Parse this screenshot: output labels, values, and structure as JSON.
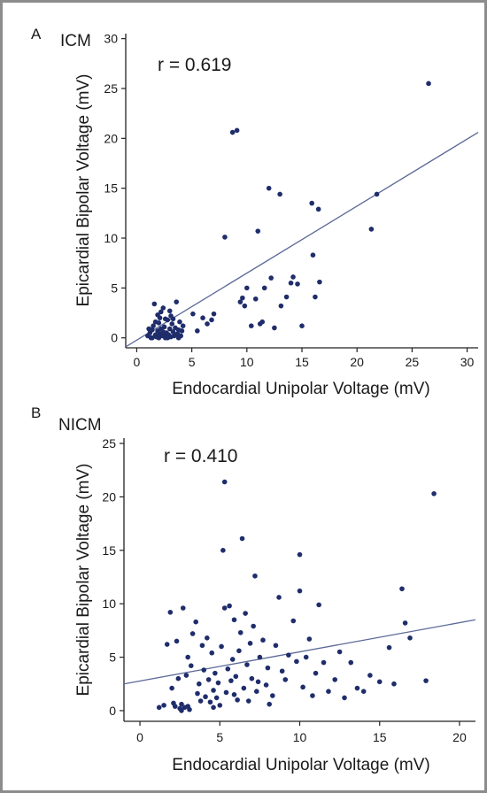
{
  "chart_data": [
    {
      "type": "scatter",
      "panel_label": "A",
      "group_label": "ICM",
      "annotation": "r = 0.619",
      "xlabel": "Endocardial Unipolar Voltage (mV)",
      "ylabel": "Epicardial Bipolar Voltage (mV)",
      "xlim": [
        -1,
        31
      ],
      "ylim": [
        -1,
        30.5
      ],
      "xticks": [
        0,
        5,
        10,
        15,
        20,
        25,
        30
      ],
      "yticks": [
        0,
        5,
        10,
        15,
        20,
        25,
        30
      ],
      "grid": false,
      "regression": {
        "x": [
          -1,
          31
        ],
        "y": [
          -0.9,
          20.6
        ]
      },
      "point_color": "#1f2d6b",
      "line_color": "#5b6896",
      "points": [
        [
          1.0,
          0.2
        ],
        [
          1.2,
          0.5
        ],
        [
          1.3,
          0.0
        ],
        [
          1.4,
          0.8
        ],
        [
          1.5,
          1.2
        ],
        [
          1.6,
          3.4
        ],
        [
          1.7,
          0.3
        ],
        [
          1.8,
          0.1
        ],
        [
          1.9,
          0.7
        ],
        [
          2.0,
          1.5
        ],
        [
          2.1,
          0.4
        ],
        [
          2.1,
          2.0
        ],
        [
          2.2,
          0.9
        ],
        [
          2.3,
          0.2
        ],
        [
          2.4,
          0.6
        ],
        [
          2.4,
          3.0
        ],
        [
          2.5,
          1.1
        ],
        [
          2.6,
          0.0
        ],
        [
          2.7,
          0.5
        ],
        [
          2.8,
          1.8
        ],
        [
          2.9,
          0.3
        ],
        [
          3.0,
          0.9
        ],
        [
          3.1,
          2.2
        ],
        [
          3.1,
          0.1
        ],
        [
          3.2,
          1.4
        ],
        [
          3.3,
          0.6
        ],
        [
          3.4,
          0.2
        ],
        [
          3.5,
          1.0
        ],
        [
          3.6,
          3.6
        ],
        [
          3.7,
          0.4
        ],
        [
          3.8,
          0.8
        ],
        [
          3.9,
          1.6
        ],
        [
          4.0,
          0.2
        ],
        [
          4.1,
          0.7
        ],
        [
          2.2,
          2.6
        ],
        [
          2.6,
          1.9
        ],
        [
          3.0,
          2.7
        ],
        [
          1.7,
          1.6
        ],
        [
          2.8,
          0.0
        ],
        [
          3.5,
          0.3
        ],
        [
          1.4,
          0.0
        ],
        [
          2.0,
          0.0
        ],
        [
          4.2,
          1.2
        ],
        [
          1.9,
          2.3
        ],
        [
          3.3,
          1.9
        ],
        [
          2.5,
          0.2
        ],
        [
          1.1,
          0.9
        ],
        [
          3.8,
          0.0
        ],
        [
          5.1,
          2.4
        ],
        [
          5.5,
          0.7
        ],
        [
          6.0,
          2.0
        ],
        [
          6.4,
          1.4
        ],
        [
          6.8,
          1.8
        ],
        [
          7.0,
          2.4
        ],
        [
          8.0,
          10.1
        ],
        [
          8.7,
          20.6
        ],
        [
          9.1,
          20.8
        ],
        [
          9.4,
          3.6
        ],
        [
          9.6,
          4.0
        ],
        [
          9.8,
          3.2
        ],
        [
          10.0,
          5.0
        ],
        [
          10.4,
          1.2
        ],
        [
          10.8,
          3.9
        ],
        [
          11.0,
          10.7
        ],
        [
          11.2,
          1.4
        ],
        [
          11.4,
          1.6
        ],
        [
          11.6,
          5.0
        ],
        [
          12.0,
          15.0
        ],
        [
          12.2,
          6.0
        ],
        [
          12.5,
          1.0
        ],
        [
          13.0,
          14.4
        ],
        [
          13.1,
          3.2
        ],
        [
          13.6,
          4.1
        ],
        [
          14.0,
          5.5
        ],
        [
          14.2,
          6.1
        ],
        [
          14.6,
          5.4
        ],
        [
          15.0,
          1.2
        ],
        [
          15.9,
          13.5
        ],
        [
          16.0,
          8.3
        ],
        [
          16.2,
          4.1
        ],
        [
          16.5,
          12.9
        ],
        [
          16.6,
          5.6
        ],
        [
          21.3,
          10.9
        ],
        [
          21.8,
          14.4
        ],
        [
          26.5,
          25.5
        ]
      ]
    },
    {
      "type": "scatter",
      "panel_label": "B",
      "group_label": "NICM",
      "annotation": "r = 0.410",
      "xlabel": "Endocardial Unipolar Voltage (mV)",
      "ylabel": "Epicardial Bipolar Voltage (mV)",
      "xlim": [
        -1,
        21
      ],
      "ylim": [
        -1,
        25.5
      ],
      "xticks": [
        0,
        5,
        10,
        15,
        20
      ],
      "yticks": [
        0,
        5,
        10,
        15,
        20,
        25
      ],
      "grid": false,
      "regression": {
        "x": [
          -1,
          21
        ],
        "y": [
          2.5,
          8.5
        ]
      },
      "point_color": "#1f2d6b",
      "line_color": "#5b6896",
      "points": [
        [
          1.2,
          0.3
        ],
        [
          1.5,
          0.5
        ],
        [
          1.7,
          6.2
        ],
        [
          1.9,
          9.2
        ],
        [
          2.0,
          2.1
        ],
        [
          2.1,
          0.7
        ],
        [
          2.2,
          0.4
        ],
        [
          2.3,
          6.5
        ],
        [
          2.4,
          3.0
        ],
        [
          2.5,
          0.2
        ],
        [
          2.6,
          0.6
        ],
        [
          2.7,
          9.6
        ],
        [
          2.8,
          0.3
        ],
        [
          2.9,
          3.3
        ],
        [
          3.0,
          5.0
        ],
        [
          3.1,
          0.1
        ],
        [
          3.2,
          4.2
        ],
        [
          3.3,
          7.2
        ],
        [
          3.5,
          8.3
        ],
        [
          3.6,
          1.6
        ],
        [
          3.7,
          2.5
        ],
        [
          3.8,
          0.9
        ],
        [
          3.9,
          6.1
        ],
        [
          4.0,
          3.8
        ],
        [
          4.1,
          1.3
        ],
        [
          4.2,
          6.8
        ],
        [
          4.3,
          2.9
        ],
        [
          4.4,
          0.8
        ],
        [
          4.5,
          5.4
        ],
        [
          4.6,
          1.9
        ],
        [
          4.7,
          3.5
        ],
        [
          4.8,
          1.2
        ],
        [
          4.9,
          2.6
        ],
        [
          5.0,
          0.5
        ],
        [
          5.1,
          6.0
        ],
        [
          5.2,
          15.0
        ],
        [
          5.3,
          21.4
        ],
        [
          5.3,
          9.6
        ],
        [
          5.4,
          1.7
        ],
        [
          5.5,
          3.9
        ],
        [
          5.6,
          9.8
        ],
        [
          5.7,
          2.8
        ],
        [
          5.8,
          4.8
        ],
        [
          5.9,
          8.5
        ],
        [
          6.0,
          3.2
        ],
        [
          6.1,
          1.0
        ],
        [
          6.2,
          5.6
        ],
        [
          6.3,
          7.3
        ],
        [
          6.4,
          16.1
        ],
        [
          6.5,
          2.1
        ],
        [
          6.6,
          9.1
        ],
        [
          6.7,
          4.3
        ],
        [
          6.8,
          0.9
        ],
        [
          6.9,
          6.3
        ],
        [
          7.0,
          3.0
        ],
        [
          7.1,
          7.9
        ],
        [
          7.2,
          12.6
        ],
        [
          7.3,
          1.8
        ],
        [
          7.5,
          5.0
        ],
        [
          7.7,
          6.6
        ],
        [
          7.9,
          2.4
        ],
        [
          8.0,
          4.0
        ],
        [
          8.3,
          1.4
        ],
        [
          8.5,
          6.1
        ],
        [
          8.7,
          10.6
        ],
        [
          8.9,
          3.7
        ],
        [
          9.1,
          2.9
        ],
        [
          9.3,
          5.2
        ],
        [
          9.6,
          8.4
        ],
        [
          9.8,
          4.6
        ],
        [
          10.0,
          11.2
        ],
        [
          10.0,
          14.6
        ],
        [
          10.2,
          2.2
        ],
        [
          10.4,
          5.0
        ],
        [
          10.6,
          6.7
        ],
        [
          10.8,
          1.4
        ],
        [
          11.0,
          3.5
        ],
        [
          11.2,
          9.9
        ],
        [
          11.5,
          4.5
        ],
        [
          11.8,
          1.8
        ],
        [
          12.2,
          2.9
        ],
        [
          12.5,
          5.5
        ],
        [
          12.8,
          1.2
        ],
        [
          13.2,
          4.5
        ],
        [
          13.6,
          2.1
        ],
        [
          14.0,
          1.8
        ],
        [
          14.4,
          3.3
        ],
        [
          15.0,
          2.7
        ],
        [
          15.6,
          5.9
        ],
        [
          15.9,
          2.5
        ],
        [
          16.4,
          11.4
        ],
        [
          16.6,
          8.2
        ],
        [
          16.9,
          6.8
        ],
        [
          17.9,
          2.8
        ],
        [
          18.4,
          20.3
        ],
        [
          3.0,
          0.4
        ],
        [
          2.6,
          0.0
        ],
        [
          4.6,
          0.3
        ],
        [
          5.9,
          1.5
        ],
        [
          7.4,
          2.7
        ],
        [
          8.1,
          0.6
        ]
      ]
    }
  ]
}
